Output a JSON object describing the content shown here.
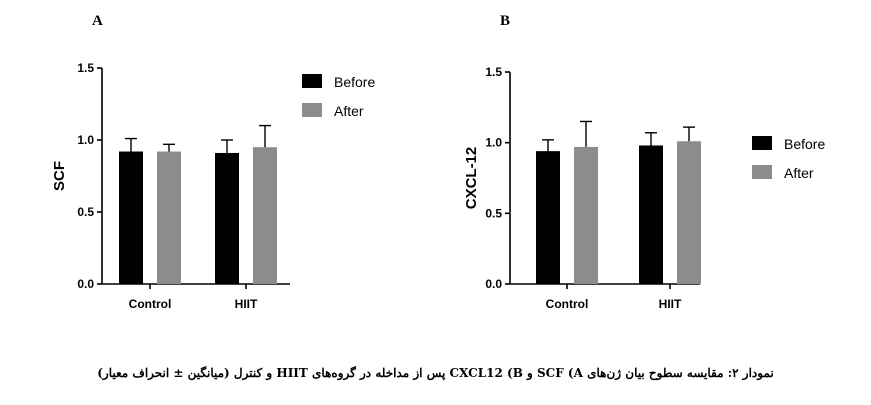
{
  "caption": "نمودار ۲: مقایسه سطوح بیان ژن‌های SCF (A و CXCL12 (B پس از مداخله در گروه‌های HIIT و کنترل (میانگین ± انحراف معیار)",
  "colors": {
    "before": "#000000",
    "after": "#8c8c8c"
  },
  "chart_data": [
    {
      "panel": "A",
      "type": "bar",
      "categories": [
        "Control",
        "HIIT"
      ],
      "series": [
        {
          "name": "Before",
          "values": [
            0.92,
            0.91
          ],
          "error": [
            0.09,
            0.09
          ]
        },
        {
          "name": "After",
          "values": [
            0.92,
            0.95
          ],
          "error": [
            0.05,
            0.15
          ]
        }
      ],
      "ylabel": "SCF",
      "ylim": [
        0,
        1.5
      ],
      "yticks": [
        "0.0",
        "0.5",
        "1.0",
        "1.5"
      ],
      "legend": "top-right"
    },
    {
      "panel": "B",
      "type": "bar",
      "categories": [
        "Control",
        "HIIT"
      ],
      "series": [
        {
          "name": "Before",
          "values": [
            0.94,
            0.98
          ],
          "error": [
            0.08,
            0.09
          ]
        },
        {
          "name": "After",
          "values": [
            0.97,
            1.01
          ],
          "error": [
            0.18,
            0.1
          ]
        }
      ],
      "ylabel": "CXCL-12",
      "ylim": [
        0,
        1.5
      ],
      "yticks": [
        "0.0",
        "0.5",
        "1.0",
        "1.5"
      ],
      "legend": "right"
    }
  ]
}
